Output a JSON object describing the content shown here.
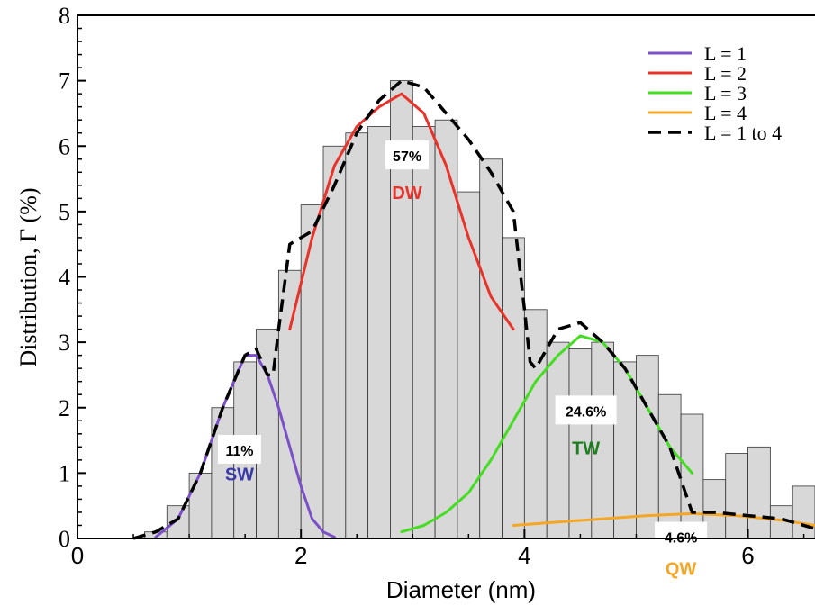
{
  "chart_data": {
    "type": "bar",
    "xlabel": "Diameter (nm)",
    "ylabel": "Distribution,  Γ  (%)",
    "xlim": [
      0,
      6.6
    ],
    "ylim": [
      0,
      8
    ],
    "x_ticks": [
      "0",
      "2",
      "4",
      "6"
    ],
    "y_ticks": [
      "0",
      "1",
      "2",
      "3",
      "4",
      "5",
      "6",
      "7",
      "8"
    ],
    "bin_width": 0.2,
    "histogram": {
      "bin_starts": [
        0.6,
        0.8,
        1.0,
        1.2,
        1.4,
        1.6,
        1.8,
        2.0,
        2.2,
        2.4,
        2.6,
        2.8,
        3.0,
        3.2,
        3.4,
        3.6,
        3.8,
        4.0,
        4.2,
        4.4,
        4.6,
        4.8,
        5.0,
        5.2,
        5.4,
        5.6,
        5.8,
        6.0,
        6.2,
        6.4
      ],
      "values": [
        0.1,
        0.5,
        1.0,
        2.0,
        2.7,
        3.2,
        4.1,
        5.1,
        6.0,
        6.2,
        6.3,
        7.0,
        6.3,
        6.4,
        5.3,
        5.8,
        4.6,
        3.5,
        3.0,
        2.9,
        3.0,
        2.7,
        2.8,
        2.2,
        1.9,
        0.9,
        1.3,
        1.4,
        0.5,
        0.8
      ]
    },
    "series": [
      {
        "name": "L = 1",
        "color": "#7b4fc8",
        "style": "solid",
        "x": [
          0.7,
          0.9,
          1.1,
          1.3,
          1.5,
          1.6,
          1.7,
          1.8,
          1.9,
          2.0,
          2.1,
          2.2,
          2.3
        ],
        "y": [
          0.02,
          0.3,
          1.0,
          2.0,
          2.8,
          2.8,
          2.5,
          2.0,
          1.4,
          0.8,
          0.3,
          0.1,
          0.02
        ]
      },
      {
        "name": "L = 2",
        "color": "#e8332a",
        "style": "solid",
        "x": [
          1.9,
          2.1,
          2.3,
          2.5,
          2.7,
          2.9,
          3.1,
          3.3,
          3.5,
          3.7,
          3.9
        ],
        "y": [
          3.2,
          4.6,
          5.7,
          6.3,
          6.6,
          6.8,
          6.5,
          5.7,
          4.6,
          3.7,
          3.2
        ]
      },
      {
        "name": "L = 3",
        "color": "#44dd22",
        "style": "solid",
        "x": [
          2.9,
          3.1,
          3.3,
          3.5,
          3.7,
          3.9,
          4.1,
          4.3,
          4.5,
          4.7,
          4.9,
          5.1,
          5.3,
          5.5
        ],
        "y": [
          0.1,
          0.2,
          0.4,
          0.7,
          1.2,
          1.8,
          2.4,
          2.8,
          3.1,
          3.0,
          2.6,
          2.0,
          1.4,
          1.0
        ]
      },
      {
        "name": "L = 4",
        "color": "#f5a623",
        "style": "solid",
        "x": [
          3.9,
          4.3,
          4.7,
          5.1,
          5.5,
          5.9,
          6.3,
          6.6
        ],
        "y": [
          0.2,
          0.25,
          0.3,
          0.35,
          0.38,
          0.35,
          0.28,
          0.2
        ]
      },
      {
        "name": "L = 1 to 4",
        "color": "#000000",
        "style": "dashed",
        "x": [
          0.5,
          0.7,
          0.9,
          1.1,
          1.3,
          1.5,
          1.6,
          1.7,
          1.75,
          1.8,
          1.9,
          2.1,
          2.3,
          2.5,
          2.7,
          2.9,
          3.1,
          3.3,
          3.5,
          3.7,
          3.9,
          4.0,
          4.05,
          4.1,
          4.3,
          4.5,
          4.7,
          4.9,
          5.1,
          5.3,
          5.5,
          5.6,
          5.7,
          6.0,
          6.3,
          6.6
        ],
        "y": [
          0.0,
          0.1,
          0.3,
          1.0,
          2.0,
          2.8,
          2.9,
          2.5,
          2.5,
          3.2,
          4.5,
          4.7,
          5.4,
          6.2,
          6.7,
          7.0,
          6.9,
          6.5,
          6.1,
          5.6,
          5.0,
          3.5,
          2.7,
          2.6,
          3.2,
          3.3,
          3.0,
          2.6,
          2.0,
          1.4,
          0.4,
          0.4,
          0.4,
          0.35,
          0.3,
          0.15
        ]
      }
    ],
    "legend_position": "top-right",
    "annotations": [
      {
        "type_label": "SW",
        "type_color": "#3a3aa8",
        "pct": "11%",
        "x": 1.45,
        "y_pct": 1.35,
        "y_type": 1.0
      },
      {
        "type_label": "DW",
        "type_color": "#e8332a",
        "pct": "57%",
        "x": 2.95,
        "y_pct": 5.85,
        "y_type": 5.3
      },
      {
        "type_label": "TW",
        "type_color": "#1e7d1e",
        "pct": "24.6%",
        "x": 4.55,
        "y_pct": 1.95,
        "y_type": 1.4
      },
      {
        "type_label": "QW",
        "type_color": "#f5a623",
        "pct": "4.6%",
        "x": 5.4,
        "y_pct": 0.02,
        "y_type": -0.45
      }
    ]
  }
}
